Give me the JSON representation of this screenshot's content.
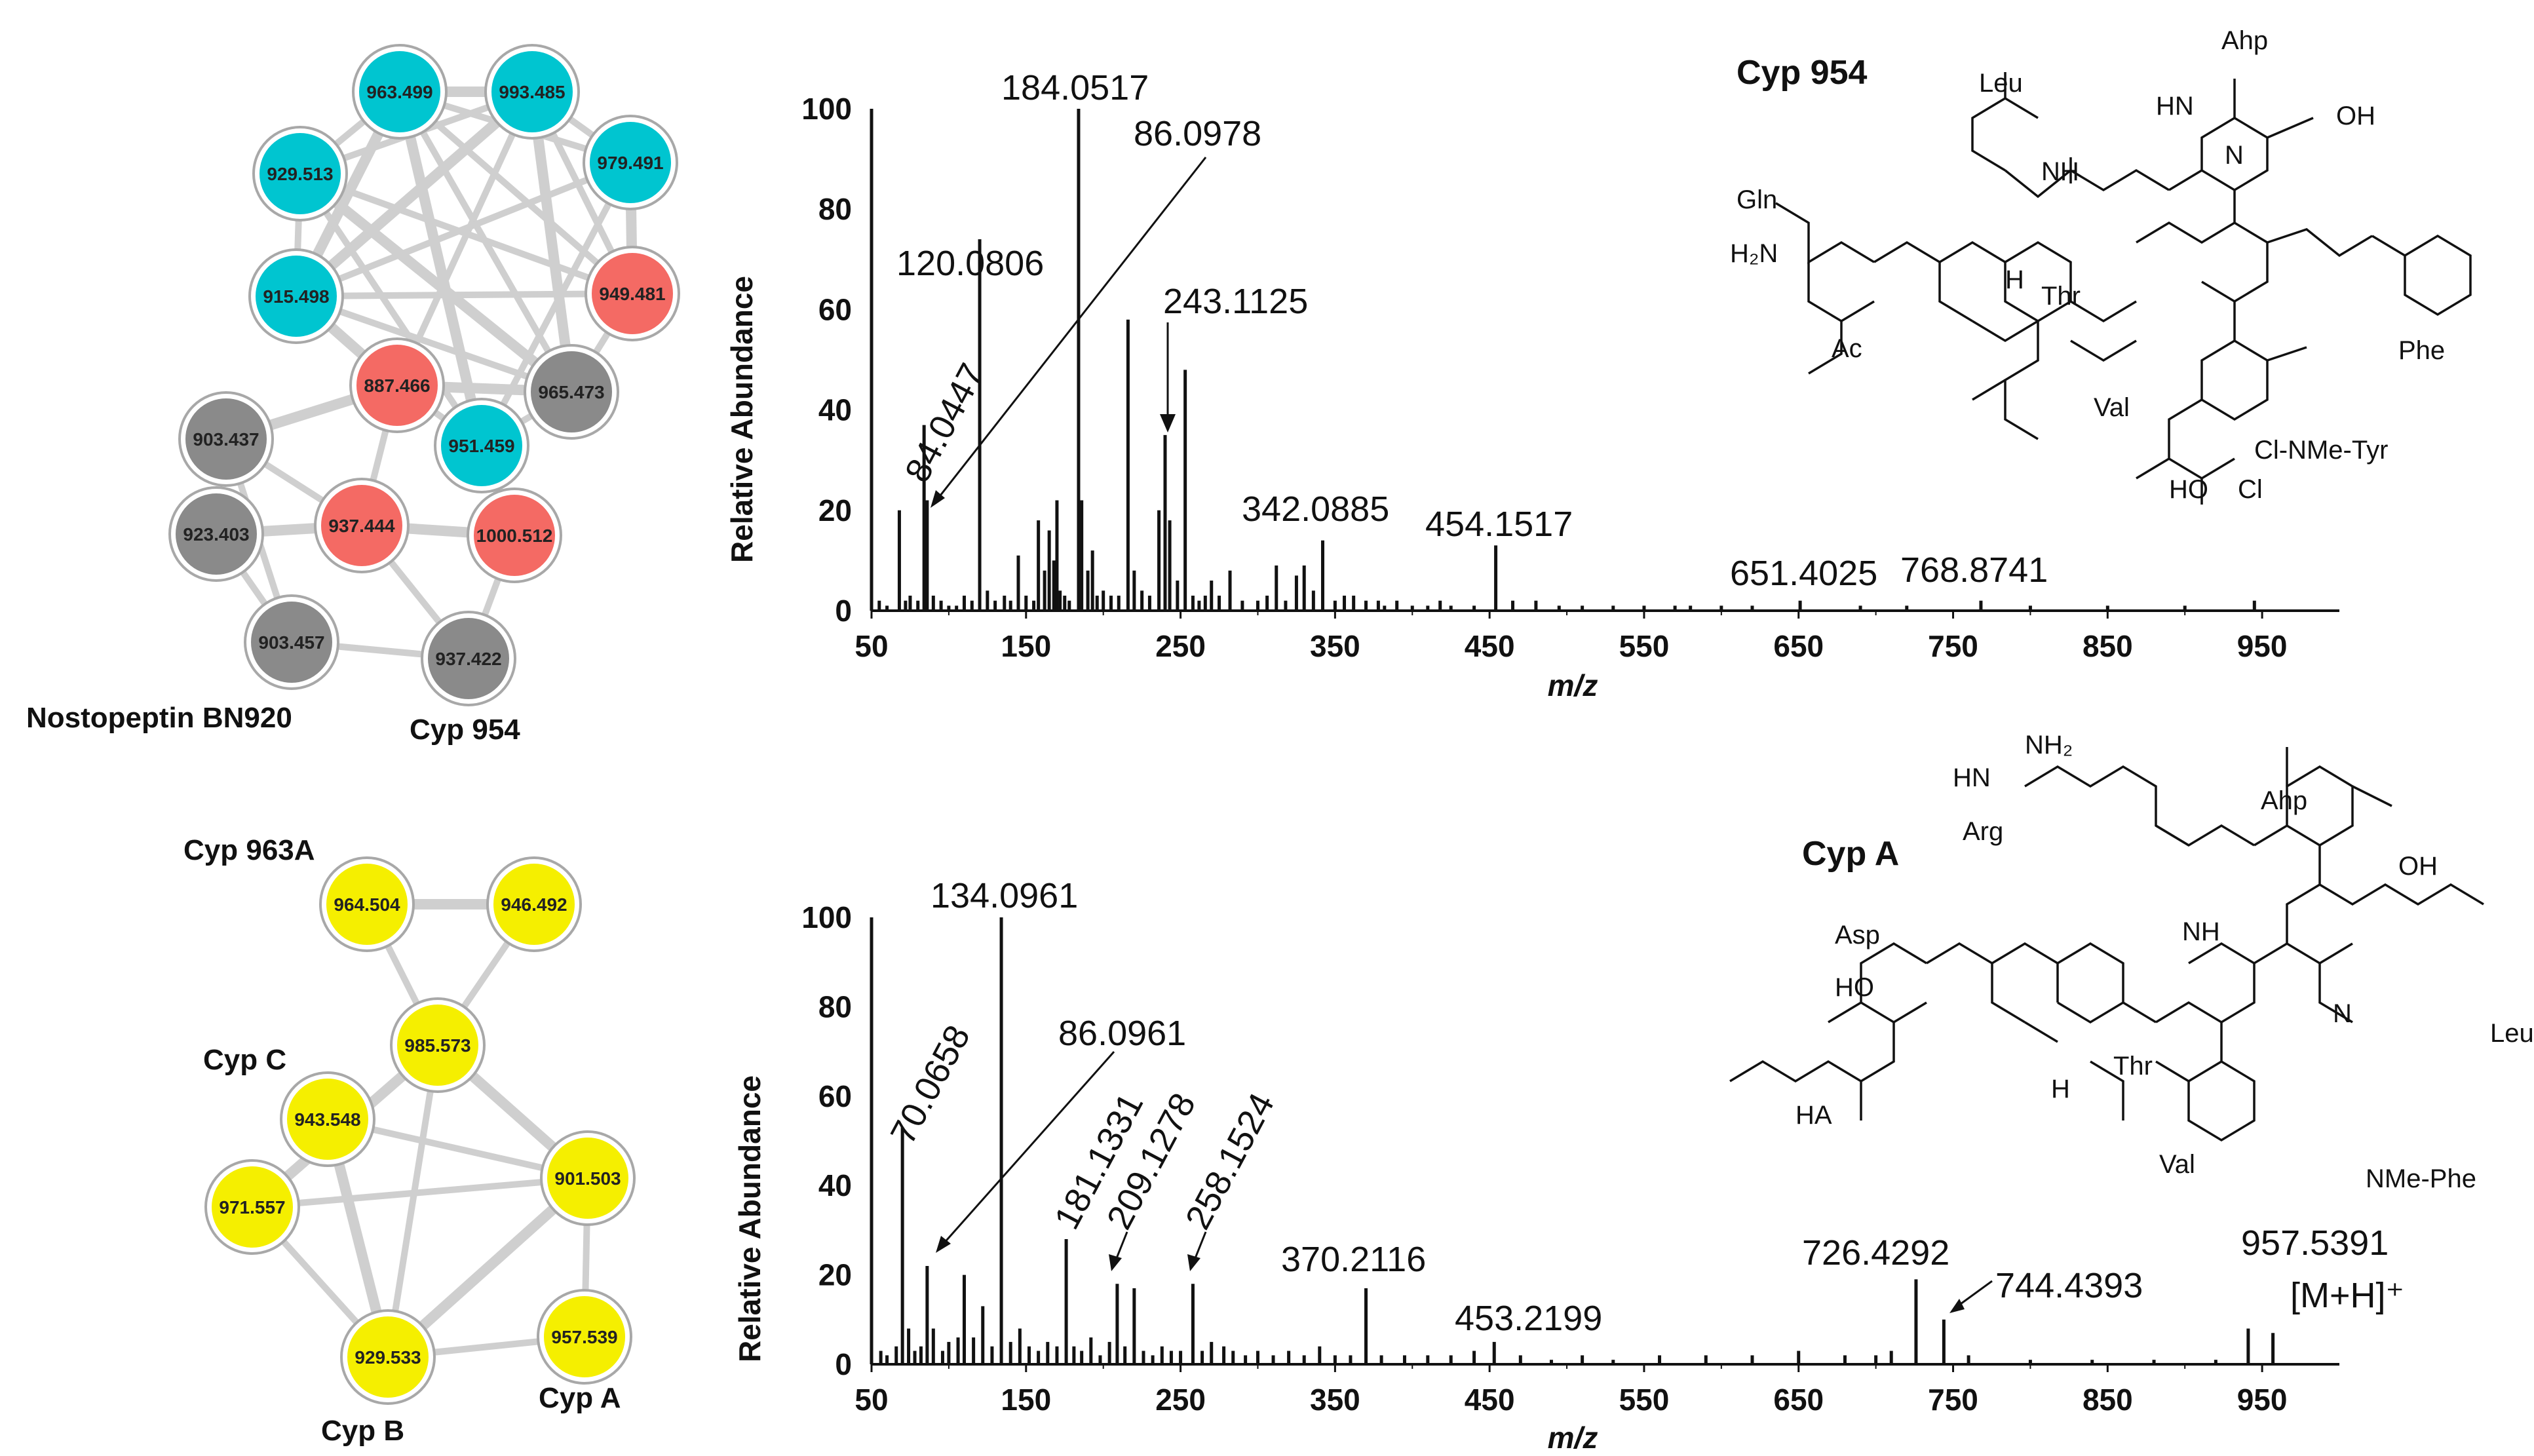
{
  "chart_data": [
    {
      "type": "network",
      "title": "",
      "nodes": [
        {
          "label": "963.499",
          "color": "#00c5d0"
        },
        {
          "label": "993.485",
          "color": "#00c5d0"
        },
        {
          "label": "929.513",
          "color": "#00c5d0"
        },
        {
          "label": "979.491",
          "color": "#00c5d0"
        },
        {
          "label": "915.498",
          "color": "#00c5d0"
        },
        {
          "label": "949.481",
          "color": "#f46a64"
        },
        {
          "label": "887.466",
          "color": "#f46a64"
        },
        {
          "label": "965.473",
          "color": "#8a8a8a"
        },
        {
          "label": "903.437",
          "color": "#8a8a8a"
        },
        {
          "label": "951.459",
          "color": "#00c5d0"
        },
        {
          "label": "923.403",
          "color": "#8a8a8a"
        },
        {
          "label": "937.444",
          "color": "#f46a64"
        },
        {
          "label": "1000.512",
          "color": "#f46a64"
        },
        {
          "label": "903.457",
          "color": "#8a8a8a"
        },
        {
          "label": "937.422",
          "color": "#8a8a8a"
        }
      ],
      "edges": [
        [
          0,
          1
        ],
        [
          0,
          2
        ],
        [
          0,
          3
        ],
        [
          0,
          4
        ],
        [
          0,
          5
        ],
        [
          0,
          7
        ],
        [
          0,
          9
        ],
        [
          1,
          3
        ],
        [
          1,
          2
        ],
        [
          1,
          4
        ],
        [
          1,
          5
        ],
        [
          1,
          6
        ],
        [
          1,
          7
        ],
        [
          2,
          4
        ],
        [
          2,
          5
        ],
        [
          2,
          7
        ],
        [
          2,
          9
        ],
        [
          3,
          4
        ],
        [
          3,
          5
        ],
        [
          3,
          9
        ],
        [
          4,
          5
        ],
        [
          4,
          6
        ],
        [
          4,
          7
        ],
        [
          5,
          7
        ],
        [
          6,
          7
        ],
        [
          6,
          9
        ],
        [
          6,
          11
        ],
        [
          6,
          8
        ],
        [
          8,
          11
        ],
        [
          8,
          13
        ],
        [
          10,
          11
        ],
        [
          10,
          13
        ],
        [
          11,
          14
        ],
        [
          11,
          12
        ],
        [
          12,
          14
        ],
        [
          13,
          14
        ],
        [
          9,
          12
        ],
        [
          7,
          9
        ]
      ],
      "annotations": [
        "Nostopeptin BN920",
        "Cyp 954"
      ]
    },
    {
      "type": "network",
      "title": "",
      "nodes": [
        {
          "label": "964.504",
          "color": "#f5ef00"
        },
        {
          "label": "946.492",
          "color": "#f5ef00"
        },
        {
          "label": "985.573",
          "color": "#f5ef00"
        },
        {
          "label": "943.548",
          "color": "#f5ef00"
        },
        {
          "label": "901.503",
          "color": "#f5ef00"
        },
        {
          "label": "971.557",
          "color": "#f5ef00"
        },
        {
          "label": "929.533",
          "color": "#f5ef00"
        },
        {
          "label": "957.539",
          "color": "#f5ef00"
        }
      ],
      "edges": [
        [
          1,
          0
        ],
        [
          0,
          2
        ],
        [
          1,
          2
        ],
        [
          2,
          4
        ],
        [
          2,
          6
        ],
        [
          3,
          4
        ],
        [
          3,
          6
        ],
        [
          5,
          4
        ],
        [
          5,
          6
        ],
        [
          4,
          6
        ],
        [
          4,
          7
        ],
        [
          6,
          7
        ],
        [
          2,
          5
        ]
      ],
      "annotations": [
        "Cyp 963A",
        "Cyp C",
        "Cyp B",
        "Cyp A"
      ]
    },
    {
      "type": "bar",
      "title": "Cyp 954",
      "xlabel": "m/z",
      "ylabel": "Relative Abundance",
      "xlim": [
        50,
        1000
      ],
      "ylim": [
        0,
        100
      ],
      "xticks": [
        "50",
        "150",
        "250",
        "350",
        "450",
        "550",
        "650",
        "750",
        "850",
        "950"
      ],
      "yticks": [
        "0",
        "20",
        "40",
        "60",
        "80",
        "100"
      ],
      "peaks_x": [
        50,
        55,
        60,
        68,
        72,
        75,
        80,
        84,
        86,
        90,
        95,
        100,
        105,
        110,
        115,
        120,
        125,
        130,
        136,
        140,
        145,
        150,
        155,
        158,
        162,
        165,
        168,
        170,
        172,
        175,
        178,
        184,
        186,
        190,
        193,
        196,
        200,
        205,
        210,
        216,
        220,
        225,
        230,
        236,
        240,
        243,
        248,
        253,
        258,
        262,
        266,
        270,
        275,
        282,
        290,
        300,
        306,
        312,
        318,
        325,
        330,
        336,
        342,
        350,
        356,
        362,
        370,
        378,
        382,
        390,
        400,
        410,
        418,
        425,
        440,
        454,
        465,
        480,
        495,
        510,
        530,
        550,
        570,
        580,
        600,
        620,
        651,
        690,
        720,
        768,
        800,
        850,
        900,
        945
      ],
      "peaks_y": [
        100,
        2,
        1,
        20,
        2,
        3,
        2,
        37,
        22,
        3,
        2,
        1,
        1,
        3,
        2,
        74,
        4,
        2,
        3,
        2,
        11,
        3,
        2,
        18,
        8,
        16,
        10,
        22,
        4,
        3,
        2,
        100,
        22,
        8,
        12,
        3,
        4,
        3,
        3,
        58,
        8,
        4,
        3,
        20,
        35,
        18,
        6,
        48,
        3,
        2,
        3,
        6,
        3,
        8,
        2,
        2,
        3,
        9,
        2,
        7,
        9,
        4,
        14,
        2,
        3,
        3,
        2,
        2,
        1,
        2,
        1,
        1,
        2,
        1,
        1,
        13,
        2,
        2,
        1,
        1,
        1,
        1,
        1,
        1,
        1,
        1,
        2,
        1,
        1,
        2,
        1,
        1,
        1,
        2
      ],
      "peak_labels": [
        {
          "mz": "84.0447"
        },
        {
          "mz": "120.0806"
        },
        {
          "mz": "184.0517"
        },
        {
          "mz": "86.0978"
        },
        {
          "mz": "243.1125"
        },
        {
          "mz": "342.0885"
        },
        {
          "mz": "454.1517"
        },
        {
          "mz": "651.4025"
        },
        {
          "mz": "768.8741"
        }
      ],
      "structure_labels": [
        "Leu",
        "Ahp",
        "HN",
        "OH",
        "Gln",
        "H₂N",
        "NH",
        "N",
        "Thr",
        "Ac",
        "Val",
        "Phe",
        "Cl-NMe-Tyr",
        "HO",
        "Cl",
        "H"
      ]
    },
    {
      "type": "bar",
      "title": "Cyp A",
      "xlabel": "m/z",
      "ylabel": "Relative Abundance",
      "xlim": [
        50,
        1000
      ],
      "ylim": [
        0,
        100
      ],
      "xticks": [
        "50",
        "150",
        "250",
        "350",
        "450",
        "550",
        "650",
        "750",
        "850",
        "950"
      ],
      "yticks": [
        "0",
        "20",
        "40",
        "60",
        "80",
        "100"
      ],
      "peaks_x": [
        50,
        56,
        60,
        66,
        70,
        74,
        78,
        82,
        86,
        90,
        96,
        100,
        106,
        110,
        116,
        122,
        128,
        134,
        140,
        146,
        152,
        158,
        164,
        170,
        176,
        181,
        186,
        192,
        198,
        204,
        209,
        214,
        220,
        226,
        232,
        238,
        244,
        250,
        258,
        264,
        270,
        278,
        284,
        292,
        300,
        310,
        320,
        330,
        340,
        350,
        360,
        370,
        380,
        395,
        410,
        425,
        440,
        453,
        470,
        490,
        510,
        530,
        560,
        590,
        620,
        650,
        680,
        700,
        710,
        726,
        744,
        760,
        800,
        840,
        880,
        920,
        941,
        957
      ],
      "peaks_y": [
        100,
        3,
        2,
        4,
        53,
        8,
        3,
        4,
        22,
        8,
        3,
        5,
        6,
        20,
        6,
        13,
        4,
        100,
        5,
        8,
        4,
        3,
        5,
        4,
        28,
        4,
        3,
        6,
        2,
        5,
        18,
        4,
        17,
        3,
        2,
        4,
        3,
        3,
        18,
        3,
        5,
        4,
        3,
        2,
        3,
        2,
        3,
        2,
        4,
        2,
        2,
        17,
        2,
        2,
        2,
        2,
        3,
        5,
        2,
        1,
        2,
        1,
        2,
        2,
        2,
        3,
        2,
        2,
        3,
        19,
        10,
        2,
        1,
        1,
        1,
        1,
        8,
        7
      ],
      "peak_labels": [
        {
          "mz": "70.0658"
        },
        {
          "mz": "134.0961"
        },
        {
          "mz": "86.0961"
        },
        {
          "mz": "181.1331"
        },
        {
          "mz": "209.1278"
        },
        {
          "mz": "258.1524"
        },
        {
          "mz": "370.2116"
        },
        {
          "mz": "453.2199"
        },
        {
          "mz": "726.4292"
        },
        {
          "mz": "744.4393"
        },
        {
          "mz": "957.5391"
        },
        {
          "mz": "[M+H]⁺"
        }
      ],
      "structure_labels": [
        "NH₂",
        "HN",
        "Arg",
        "Ahp",
        "OH",
        "Asp",
        "HO",
        "NH",
        "N",
        "H",
        "Thr",
        "HA",
        "Val",
        "Leu",
        "NMe-Phe"
      ]
    }
  ]
}
